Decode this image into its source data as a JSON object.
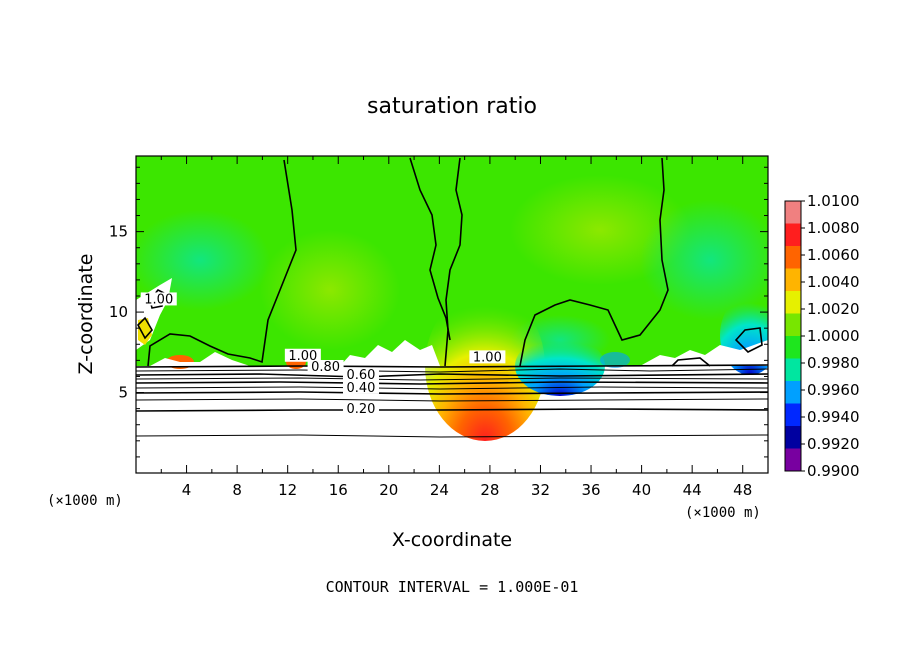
{
  "chart_data": {
    "type": "heatmap",
    "title": "saturation ratio",
    "xlabel": "X-coordinate",
    "ylabel": "Z-coordinate",
    "x_unit_label": "(×1000 m)",
    "x_ticks": [
      4,
      8,
      12,
      16,
      20,
      24,
      28,
      32,
      36,
      40,
      44,
      48
    ],
    "y_ticks": [
      5,
      10,
      15
    ],
    "xlim": [
      0,
      50
    ],
    "ylim": [
      0,
      19.7
    ],
    "footer": "CONTOUR INTERVAL = 1.000E-01",
    "colorbar": {
      "labels": [
        "1.0100",
        "1.0080",
        "1.0060",
        "1.0040",
        "1.0020",
        "1.0000",
        "0.9980",
        "0.9960",
        "0.9940",
        "0.9920",
        "0.9900"
      ],
      "colors": [
        "#f08080",
        "#ff1e1e",
        "#ff6400",
        "#ffb400",
        "#e6f000",
        "#78e600",
        "#1ee61e",
        "#00e6a0",
        "#00a0ff",
        "#0028ff",
        "#0000a0",
        "#7800a0"
      ]
    },
    "contour_labels": [
      {
        "text": "1.00",
        "x": 13.2,
        "z": 7.1
      },
      {
        "text": "0.80",
        "x": 15.0,
        "z": 6.4
      },
      {
        "text": "0.60",
        "x": 17.8,
        "z": 5.9
      },
      {
        "text": "0.40",
        "x": 17.8,
        "z": 5.1
      },
      {
        "text": "0.20",
        "x": 17.8,
        "z": 3.8
      },
      {
        "text": "1.00",
        "x": 27.8,
        "z": 7.0
      },
      {
        "text": "1.00",
        "x": 1.8,
        "z": 10.6
      }
    ]
  }
}
